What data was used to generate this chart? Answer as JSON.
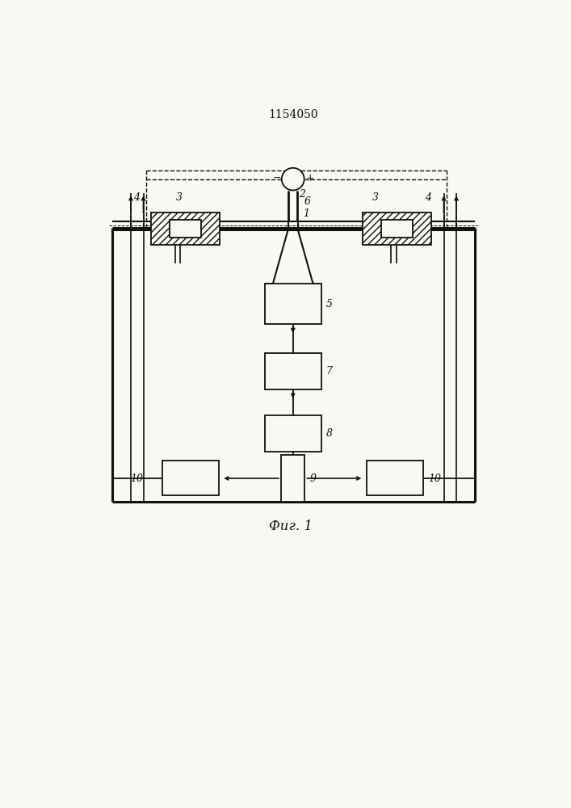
{
  "title": "1154050",
  "fig_label": "Фиг. 1",
  "bg_color": "#f8f8f4",
  "line_color": "#111111",
  "figsize": [
    7.07,
    10.0
  ],
  "dpi": 100
}
